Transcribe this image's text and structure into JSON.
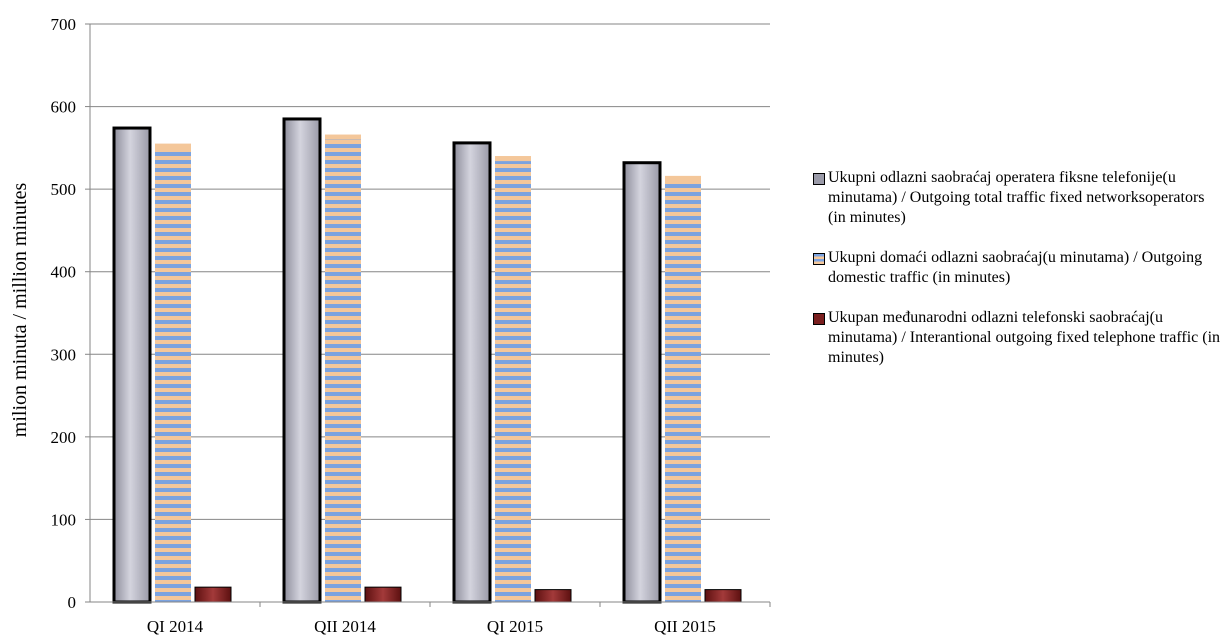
{
  "chart_data": {
    "type": "bar",
    "categories": [
      "QI 2014",
      "QII 2014",
      "QI 2015",
      "QII 2015"
    ],
    "series": [
      {
        "name": "Ukupni odlazni saobraćaj operatera fiksne telefonije(u minutama) / Outgoing total traffic fixed networksoperators (in minutes)",
        "values": [
          574,
          585,
          556,
          532
        ],
        "color": "#a6a6b4"
      },
      {
        "name": "Ukupni domaći odlazni saobraćaj(u minutama) / Outgoing domestic traffic  (in minutes)",
        "values": [
          555,
          566,
          540,
          516
        ],
        "color": "#7ba3e0"
      },
      {
        "name": "Ukupan međunarodni odlazni telefonski saobraćaj(u minutama) / Interantional outgoing fixed telephone traffic (in minutes)",
        "values": [
          18,
          18,
          15,
          15
        ],
        "color": "#7a1f1f"
      }
    ],
    "ylabel": "milion minuta / million minutes",
    "xlabel": "",
    "ylim": [
      0,
      700
    ],
    "yticks": [
      0,
      100,
      200,
      300,
      400,
      500,
      600,
      700
    ],
    "grid": true,
    "legend_position": "right"
  }
}
